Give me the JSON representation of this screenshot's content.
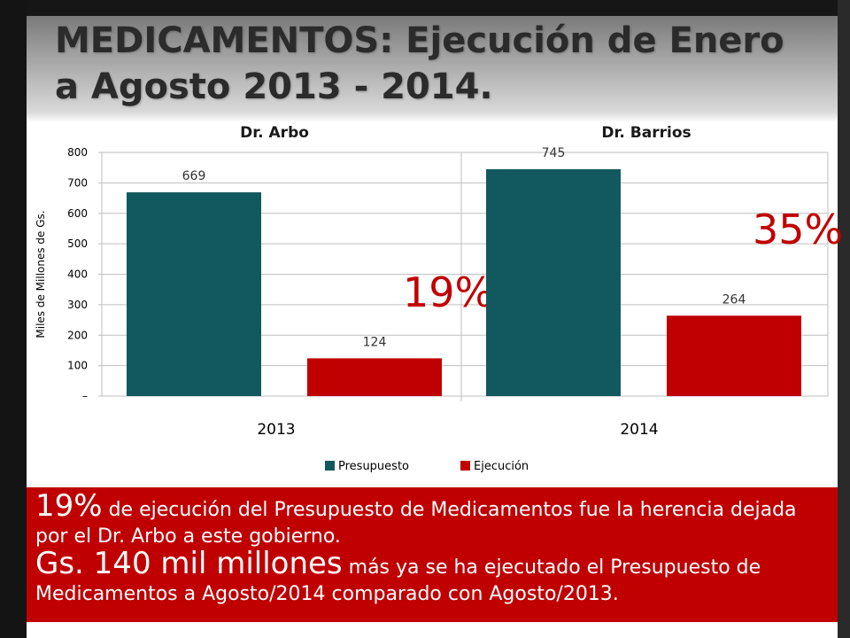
{
  "slide": {
    "title": "MEDICAMENTOS: Ejecución de Enero a Agosto 2013 - 2014."
  },
  "colors": {
    "presupuesto": "#12595f",
    "ejecucion": "#c00000",
    "callout_bg": "#c00000",
    "percent_text": "#c00000"
  },
  "chart_data": {
    "type": "bar",
    "categories": [
      "2013",
      "2014"
    ],
    "panel_labels": [
      "Dr. Arbo",
      "Dr. Barrios"
    ],
    "series": [
      {
        "name": "Presupuesto",
        "values": [
          669,
          745
        ]
      },
      {
        "name": "Ejecución",
        "values": [
          124,
          264
        ]
      }
    ],
    "data_labels": {
      "presupuesto": [
        "669",
        "745"
      ],
      "ejecucion": [
        "124",
        "264"
      ]
    },
    "percent_labels": [
      "19%",
      "35%"
    ],
    "ylabel": "Miles de Millones de Gs.",
    "ylim": [
      0,
      800
    ],
    "yticks": [
      "–",
      "100",
      "200",
      "300",
      "400",
      "500",
      "600",
      "700",
      "800"
    ],
    "ytick_values": [
      0,
      100,
      200,
      300,
      400,
      500,
      600,
      700,
      800
    ],
    "grid": true,
    "legend_position": "bottom"
  },
  "callout": {
    "line1_big": "19%",
    "line1_rest": " de ejecución del Presupuesto de Medicamentos fue la herencia dejada por el Dr. Arbo a este gobierno.",
    "line2_big": "Gs. 140 mil millones",
    "line2_rest": " más ya se ha ejecutado el Presupuesto de Medicamentos a Agosto/2014 comparado con Agosto/2013."
  }
}
